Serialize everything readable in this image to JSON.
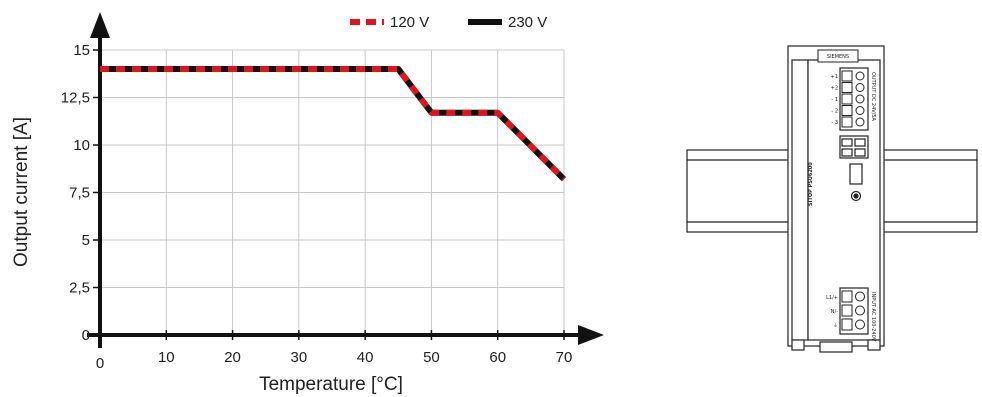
{
  "chart_data": {
    "type": "line",
    "xlabel": "Temperature [°C]",
    "ylabel": "Output current [A]",
    "xlim": [
      0,
      70
    ],
    "ylim": [
      0,
      15
    ],
    "xticks": [
      0,
      10,
      20,
      30,
      40,
      50,
      60,
      70
    ],
    "xtick_labels": [
      "0",
      "10",
      "20",
      "30",
      "40",
      "50",
      "60",
      "70"
    ],
    "yticks": [
      0,
      2.5,
      5,
      7.5,
      10,
      12.5,
      15
    ],
    "ytick_labels": [
      "0",
      "2,5",
      "5",
      "7,5",
      "10",
      "12,5",
      "15"
    ],
    "grid": true,
    "legend_position": "top-right",
    "series": [
      {
        "name": "120 V",
        "color": "#e0151b",
        "style": "dashed",
        "x": [
          0,
          45,
          50,
          60,
          70
        ],
        "y": [
          14,
          14,
          11.7,
          11.7,
          8.2
        ]
      },
      {
        "name": "230 V",
        "color": "#111111",
        "style": "solid",
        "x": [
          0,
          45,
          50,
          60,
          70
        ],
        "y": [
          14,
          14,
          11.7,
          11.7,
          8.2
        ]
      }
    ]
  },
  "device": {
    "brand": "SIEMENS",
    "model": "SITOP PSU6200",
    "output_label": "OUTPUT DC 24V/5A",
    "input_label": "INPUT AC 100-240V",
    "output_terminals": [
      "+1",
      "+2",
      "- 1",
      "- 2",
      "- 3"
    ],
    "input_terminals": [
      "L1/+",
      "N/-",
      "⏚"
    ]
  }
}
